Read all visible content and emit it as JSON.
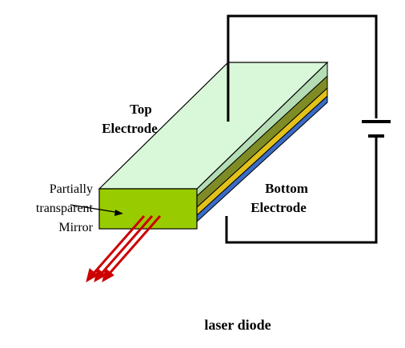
{
  "labels": {
    "top_electrode": [
      "Top",
      "Electrode"
    ],
    "bottom_electrode": [
      "Bottom",
      "Electrode"
    ],
    "mirror": [
      "Partially",
      "transparent",
      "Mirror"
    ],
    "caption": "laser diode"
  },
  "colors": {
    "top_face": "#d9f7d9",
    "front_face": "#99cc00",
    "layer_olive": "#7f8c26",
    "layer_yellow": "#e2c21a",
    "layer_blue": "#3a6cc7",
    "layer_green_light": "#b5ddb5",
    "wire": "#000000",
    "laser_beam": "#cc0000"
  }
}
